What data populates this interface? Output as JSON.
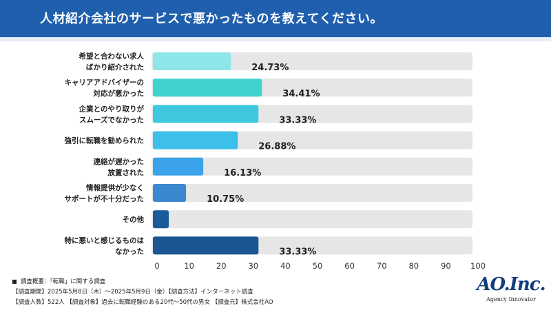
{
  "header": {
    "title": "人材紹介会社のサービスで悪かったものを教えてください。"
  },
  "chart_data": {
    "type": "bar",
    "orientation": "horizontal",
    "categories": [
      [
        "希望と合わない求人",
        "ばかり紹介された"
      ],
      [
        "キャリアアドバイザーの",
        "対応が悪かった"
      ],
      [
        "企業とのやり取りが",
        "スムーズでなかった"
      ],
      [
        "強引に転職を勧められた"
      ],
      [
        "連絡が遅かった",
        "放置された"
      ],
      [
        "情報提供が少なく",
        "サポートが不十分だった"
      ],
      [
        "その他"
      ],
      [
        "特に悪いと感じるものは",
        "なかった"
      ]
    ],
    "values": [
      24.73,
      34.41,
      33.33,
      26.88,
      16.13,
      10.75,
      5.38,
      33.33
    ],
    "value_labels": [
      "24.73%",
      "34.41%",
      "33.33%",
      "26.88%",
      "16.13%",
      "10.75%",
      "",
      "33.33%"
    ],
    "colors": [
      "#8ee6e8",
      "#3fd2ce",
      "#3ec8df",
      "#3cbfe8",
      "#3aa3ea",
      "#3a88cf",
      "#1b5b9a",
      "#1b5592"
    ],
    "track_color": "#e6e6e6",
    "xlim": [
      0,
      100
    ],
    "xticks": [
      0,
      10,
      20,
      30,
      40,
      50,
      60,
      70,
      80,
      90,
      100
    ],
    "grid": false
  },
  "footer": {
    "line1": "調査概要：「転職」に関する調査",
    "line2": "【調査期間】2025年5月8日（木）～2025年5月9日（金）【調査方法】インターネット調査",
    "line3": "【調査人数】522人 【調査対象】過去に転職経験のある20代～50代の男女 【調査元】株式会社AO"
  },
  "logo": {
    "mark": "AO.Inc.",
    "sub": "Agency Innovator"
  }
}
